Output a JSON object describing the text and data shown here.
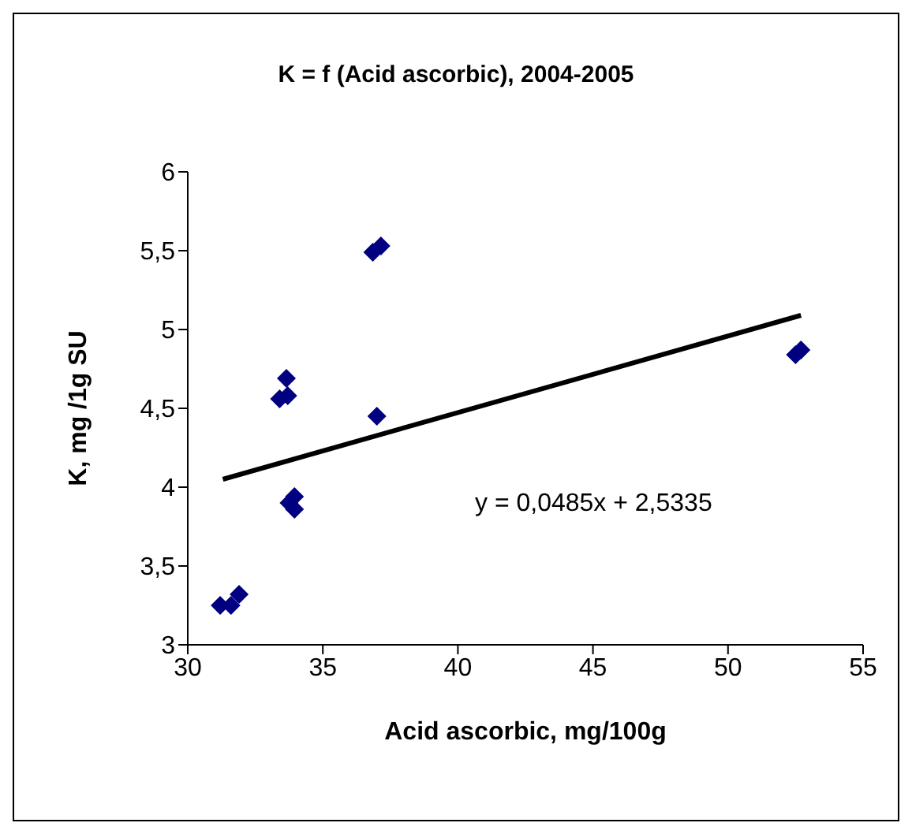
{
  "chart_data": {
    "type": "scatter",
    "title": "K = f (Acid ascorbic), 2004-2005",
    "xlabel": "Acid ascorbic, mg/100g",
    "ylabel": "K, mg /1g SU",
    "series": [
      {
        "color": "#000080",
        "marker": "diamond",
        "x": [
          31.2,
          31.6,
          31.9,
          33.4,
          33.65,
          33.7,
          33.75,
          33.95,
          33.95,
          36.85,
          37.0,
          37.15,
          52.5,
          52.7
        ],
        "values": [
          3.25,
          3.25,
          3.32,
          4.56,
          4.69,
          4.58,
          3.9,
          3.94,
          3.86,
          5.49,
          4.45,
          5.53,
          4.84,
          4.87
        ]
      },
      {
        "type": "line",
        "color": "#000000",
        "marker": "none",
        "x": [
          31.3,
          52.7
        ],
        "values": [
          4.05,
          5.09
        ]
      }
    ],
    "annotations": [
      "y = 0,0485x + 2,5335"
    ],
    "xlim": [
      30,
      55
    ],
    "xticks": [
      30,
      35,
      40,
      45,
      50,
      55
    ],
    "ylim": [
      3,
      6
    ],
    "yticks": [
      {
        "value": 3,
        "label": "3"
      },
      {
        "value": 3.5,
        "label": "3,5"
      },
      {
        "value": 4,
        "label": "4"
      },
      {
        "value": 4.5,
        "label": "4,5"
      },
      {
        "value": 5,
        "label": "5"
      },
      {
        "value": 5.5,
        "label": "5,5"
      },
      {
        "value": 6,
        "label": "6"
      }
    ],
    "grid": false,
    "legend": false
  }
}
